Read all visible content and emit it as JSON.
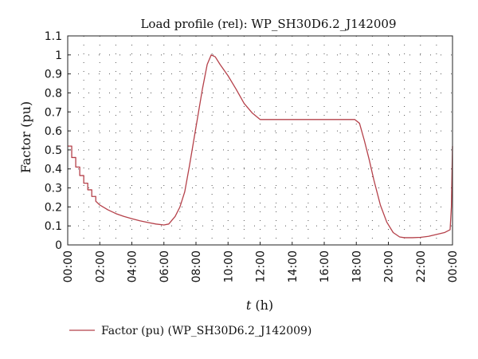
{
  "chart_data": {
    "type": "line",
    "title": "Load profile (rel): WP_SH30D6.2_J142009",
    "xlabel_var": "t",
    "xlabel_unit": " (h)",
    "ylabel": "Factor (pu)",
    "ylim": [
      0,
      1.1
    ],
    "xlim": [
      0,
      24
    ],
    "grid": true,
    "legend_position": "bottom-left",
    "line_color": "#b5414a",
    "y_ticks": [
      {
        "value": 0,
        "label": "0"
      },
      {
        "value": 0.1,
        "label": "0.1"
      },
      {
        "value": 0.2,
        "label": "0.2"
      },
      {
        "value": 0.3,
        "label": "0.3"
      },
      {
        "value": 0.4,
        "label": "0.4"
      },
      {
        "value": 0.5,
        "label": "0.5"
      },
      {
        "value": 0.6,
        "label": "0.6"
      },
      {
        "value": 0.7,
        "label": "0.7"
      },
      {
        "value": 0.8,
        "label": "0.8"
      },
      {
        "value": 0.9,
        "label": "0.9"
      },
      {
        "value": 1.0,
        "label": "1"
      },
      {
        "value": 1.1,
        "label": "1.1"
      }
    ],
    "x_ticks": [
      {
        "value": 0,
        "label": "00:00"
      },
      {
        "value": 2,
        "label": "02:00"
      },
      {
        "value": 4,
        "label": "04:00"
      },
      {
        "value": 6,
        "label": "06:00"
      },
      {
        "value": 8,
        "label": "08:00"
      },
      {
        "value": 10,
        "label": "10:00"
      },
      {
        "value": 12,
        "label": "12:00"
      },
      {
        "value": 14,
        "label": "14:00"
      },
      {
        "value": 16,
        "label": "16:00"
      },
      {
        "value": 18,
        "label": "18:00"
      },
      {
        "value": 20,
        "label": "20:00"
      },
      {
        "value": 22,
        "label": "22:00"
      },
      {
        "value": 24,
        "label": "00:00"
      }
    ],
    "series": [
      {
        "name": "Factor (pu) (WP_SH30D6.2_J142009)",
        "points": [
          [
            0.0,
            0.52
          ],
          [
            0.25,
            0.52
          ],
          [
            0.25,
            0.46
          ],
          [
            0.5,
            0.46
          ],
          [
            0.5,
            0.41
          ],
          [
            0.75,
            0.41
          ],
          [
            0.75,
            0.365
          ],
          [
            1.0,
            0.365
          ],
          [
            1.0,
            0.325
          ],
          [
            1.25,
            0.325
          ],
          [
            1.25,
            0.29
          ],
          [
            1.5,
            0.29
          ],
          [
            1.5,
            0.255
          ],
          [
            1.75,
            0.255
          ],
          [
            1.75,
            0.23
          ],
          [
            2.0,
            0.21
          ],
          [
            2.5,
            0.185
          ],
          [
            3.0,
            0.165
          ],
          [
            3.5,
            0.15
          ],
          [
            4.0,
            0.138
          ],
          [
            4.5,
            0.127
          ],
          [
            5.0,
            0.118
          ],
          [
            5.5,
            0.11
          ],
          [
            6.0,
            0.105
          ],
          [
            6.3,
            0.11
          ],
          [
            6.7,
            0.15
          ],
          [
            7.0,
            0.2
          ],
          [
            7.3,
            0.28
          ],
          [
            7.6,
            0.42
          ],
          [
            8.0,
            0.62
          ],
          [
            8.4,
            0.82
          ],
          [
            8.7,
            0.95
          ],
          [
            8.95,
            1.0
          ],
          [
            9.2,
            0.99
          ],
          [
            9.5,
            0.95
          ],
          [
            10.0,
            0.89
          ],
          [
            10.5,
            0.82
          ],
          [
            11.0,
            0.745
          ],
          [
            11.5,
            0.695
          ],
          [
            12.0,
            0.66
          ],
          [
            13.0,
            0.66
          ],
          [
            14.0,
            0.66
          ],
          [
            15.0,
            0.66
          ],
          [
            16.0,
            0.66
          ],
          [
            17.0,
            0.66
          ],
          [
            17.9,
            0.66
          ],
          [
            18.2,
            0.64
          ],
          [
            18.5,
            0.55
          ],
          [
            18.8,
            0.45
          ],
          [
            19.1,
            0.34
          ],
          [
            19.5,
            0.21
          ],
          [
            19.9,
            0.12
          ],
          [
            20.3,
            0.065
          ],
          [
            20.7,
            0.042
          ],
          [
            21.0,
            0.038
          ],
          [
            21.5,
            0.038
          ],
          [
            22.0,
            0.04
          ],
          [
            22.5,
            0.045
          ],
          [
            23.0,
            0.055
          ],
          [
            23.5,
            0.065
          ],
          [
            23.85,
            0.08
          ],
          [
            23.93,
            0.2
          ],
          [
            24.0,
            0.52
          ]
        ]
      }
    ]
  }
}
